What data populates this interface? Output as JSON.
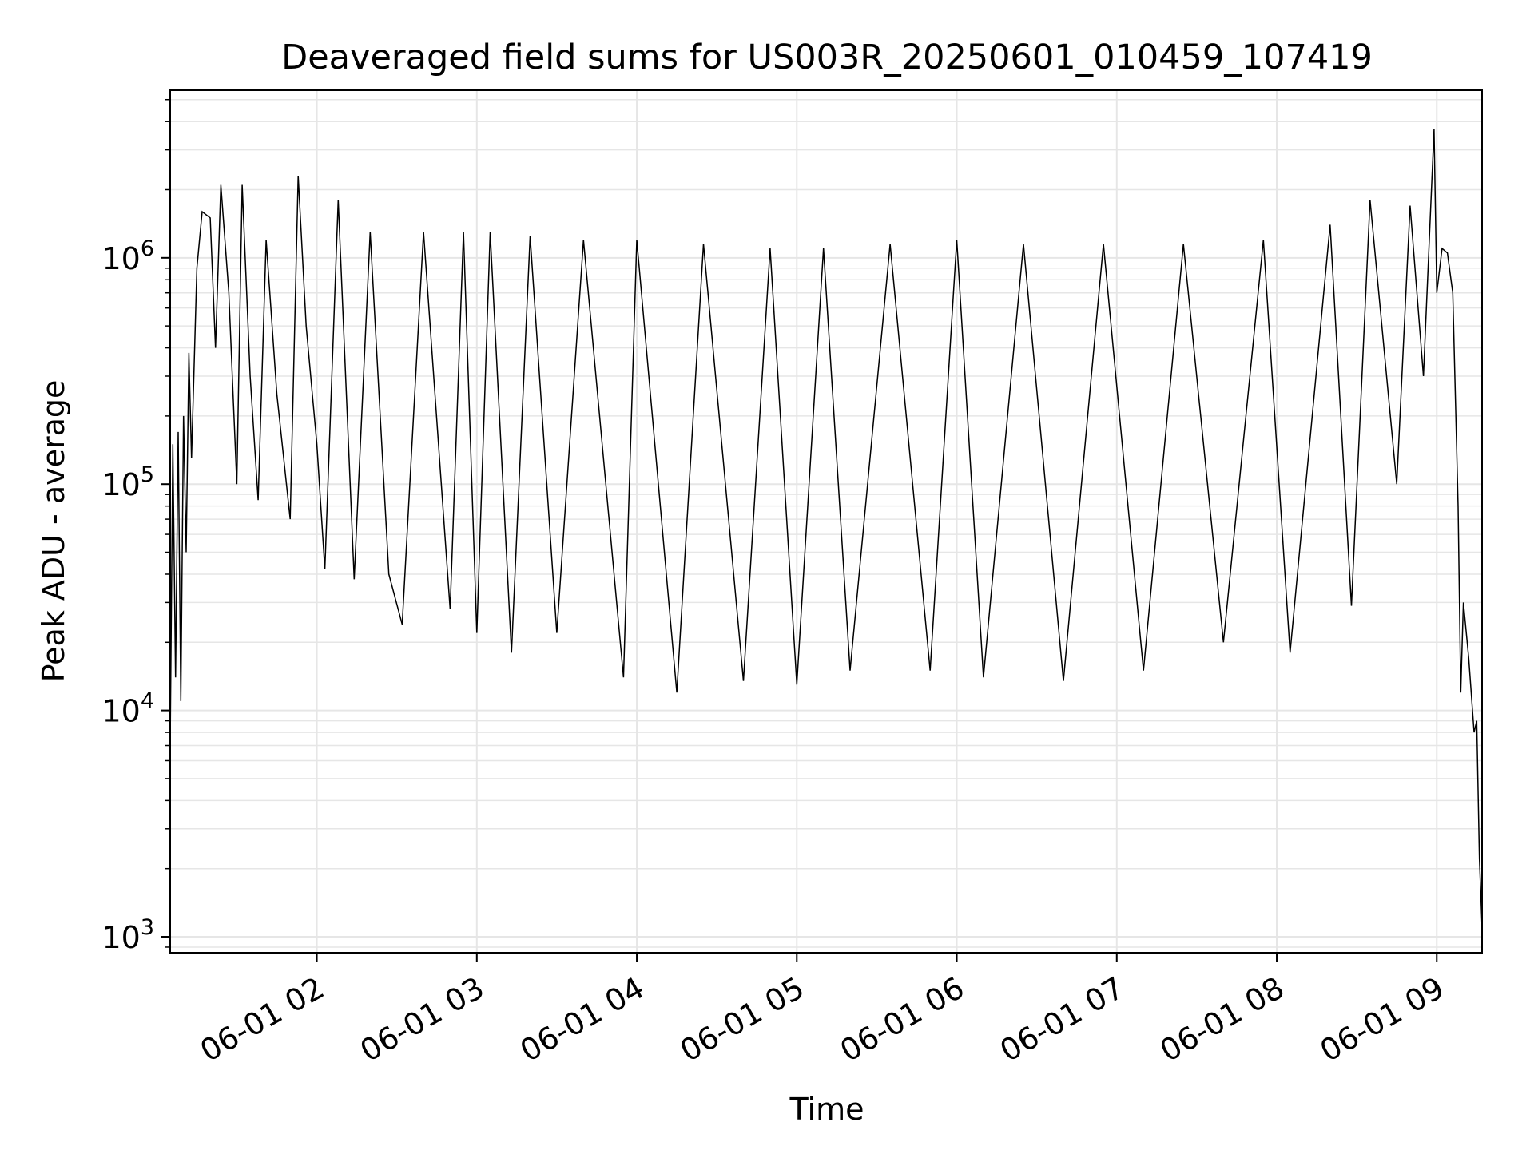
{
  "chart_data": {
    "type": "line",
    "title": "Deaveraged field sums for US003R_20250601_010459_107419",
    "xlabel": "Time",
    "ylabel": "Peak ADU - average",
    "yscale": "log",
    "ylim": [
      850,
      5500000
    ],
    "xlim": [
      "2025-06-01T01:05:00",
      "2025-06-01T09:17:00"
    ],
    "grid": true,
    "line_color": "#000000",
    "grid_color": "#e6e6e6",
    "x_ticks": [
      {
        "t": "2025-06-01T02:00:00",
        "label": "06-01 02"
      },
      {
        "t": "2025-06-01T03:00:00",
        "label": "06-01 03"
      },
      {
        "t": "2025-06-01T04:00:00",
        "label": "06-01 04"
      },
      {
        "t": "2025-06-01T05:00:00",
        "label": "06-01 05"
      },
      {
        "t": "2025-06-01T06:00:00",
        "label": "06-01 06"
      },
      {
        "t": "2025-06-01T07:00:00",
        "label": "06-01 07"
      },
      {
        "t": "2025-06-01T08:00:00",
        "label": "06-01 08"
      },
      {
        "t": "2025-06-01T09:00:00",
        "label": "06-01 09"
      }
    ],
    "y_ticks": [
      {
        "value": 1000,
        "base": "10",
        "exp": "3"
      },
      {
        "value": 10000,
        "base": "10",
        "exp": "4"
      },
      {
        "value": 100000,
        "base": "10",
        "exp": "5"
      },
      {
        "value": 1000000,
        "base": "10",
        "exp": "6"
      }
    ],
    "series": [
      {
        "points": [
          [
            "2025-06-01T01:05:00",
            7000
          ],
          [
            "2025-06-01T01:06:00",
            150000
          ],
          [
            "2025-06-01T01:07:00",
            14000
          ],
          [
            "2025-06-01T01:08:00",
            170000
          ],
          [
            "2025-06-01T01:09:00",
            11000
          ],
          [
            "2025-06-01T01:10:00",
            200000
          ],
          [
            "2025-06-01T01:11:00",
            50000
          ],
          [
            "2025-06-01T01:12:00",
            380000
          ],
          [
            "2025-06-01T01:13:00",
            130000
          ],
          [
            "2025-06-01T01:15:00",
            900000
          ],
          [
            "2025-06-01T01:17:00",
            1600000
          ],
          [
            "2025-06-01T01:20:00",
            1500000
          ],
          [
            "2025-06-01T01:22:00",
            400000
          ],
          [
            "2025-06-01T01:24:00",
            2100000
          ],
          [
            "2025-06-01T01:27:00",
            700000
          ],
          [
            "2025-06-01T01:30:00",
            100000
          ],
          [
            "2025-06-01T01:32:00",
            2100000
          ],
          [
            "2025-06-01T01:35:00",
            300000
          ],
          [
            "2025-06-01T01:38:00",
            85000
          ],
          [
            "2025-06-01T01:41:00",
            1200000
          ],
          [
            "2025-06-01T01:45:00",
            250000
          ],
          [
            "2025-06-01T01:50:00",
            70000
          ],
          [
            "2025-06-01T01:53:00",
            2300000
          ],
          [
            "2025-06-01T01:56:00",
            500000
          ],
          [
            "2025-06-01T02:00:00",
            150000
          ],
          [
            "2025-06-01T02:03:00",
            42000
          ],
          [
            "2025-06-01T02:08:00",
            1800000
          ],
          [
            "2025-06-01T02:14:00",
            38000
          ],
          [
            "2025-06-01T02:20:00",
            1300000
          ],
          [
            "2025-06-01T02:27:00",
            40000
          ],
          [
            "2025-06-01T02:32:00",
            24000
          ],
          [
            "2025-06-01T02:40:00",
            1300000
          ],
          [
            "2025-06-01T02:50:00",
            28000
          ],
          [
            "2025-06-01T02:55:00",
            1300000
          ],
          [
            "2025-06-01T03:00:00",
            22000
          ],
          [
            "2025-06-01T03:05:00",
            1300000
          ],
          [
            "2025-06-01T03:13:00",
            18000
          ],
          [
            "2025-06-01T03:20:00",
            1250000
          ],
          [
            "2025-06-01T03:30:00",
            22000
          ],
          [
            "2025-06-01T03:40:00",
            1200000
          ],
          [
            "2025-06-01T03:55:00",
            14000
          ],
          [
            "2025-06-01T04:00:00",
            1200000
          ],
          [
            "2025-06-01T04:15:00",
            12000
          ],
          [
            "2025-06-01T04:25:00",
            1150000
          ],
          [
            "2025-06-01T04:40:00",
            13500
          ],
          [
            "2025-06-01T04:50:00",
            1100000
          ],
          [
            "2025-06-01T05:00:00",
            13000
          ],
          [
            "2025-06-01T05:10:00",
            1100000
          ],
          [
            "2025-06-01T05:20:00",
            15000
          ],
          [
            "2025-06-01T05:35:00",
            1150000
          ],
          [
            "2025-06-01T05:50:00",
            15000
          ],
          [
            "2025-06-01T06:00:00",
            1200000
          ],
          [
            "2025-06-01T06:10:00",
            14000
          ],
          [
            "2025-06-01T06:25:00",
            1150000
          ],
          [
            "2025-06-01T06:40:00",
            13500
          ],
          [
            "2025-06-01T06:55:00",
            1150000
          ],
          [
            "2025-06-01T07:10:00",
            15000
          ],
          [
            "2025-06-01T07:25:00",
            1150000
          ],
          [
            "2025-06-01T07:40:00",
            20000
          ],
          [
            "2025-06-01T07:55:00",
            1200000
          ],
          [
            "2025-06-01T08:05:00",
            18000
          ],
          [
            "2025-06-01T08:20:00",
            1400000
          ],
          [
            "2025-06-01T08:28:00",
            29000
          ],
          [
            "2025-06-01T08:35:00",
            1800000
          ],
          [
            "2025-06-01T08:45:00",
            100000
          ],
          [
            "2025-06-01T08:50:00",
            1700000
          ],
          [
            "2025-06-01T08:55:00",
            300000
          ],
          [
            "2025-06-01T08:59:00",
            3700000
          ],
          [
            "2025-06-01T09:00:00",
            700000
          ],
          [
            "2025-06-01T09:02:00",
            1100000
          ],
          [
            "2025-06-01T09:04:00",
            1050000
          ],
          [
            "2025-06-01T09:06:00",
            700000
          ],
          [
            "2025-06-01T09:08:00",
            80000
          ],
          [
            "2025-06-01T09:09:00",
            12000
          ],
          [
            "2025-06-01T09:10:00",
            30000
          ],
          [
            "2025-06-01T09:12:00",
            17000
          ],
          [
            "2025-06-01T09:14:00",
            8000
          ],
          [
            "2025-06-01T09:15:00",
            9000
          ],
          [
            "2025-06-01T09:16:00",
            2200
          ],
          [
            "2025-06-01T09:17:00",
            1100
          ]
        ]
      }
    ]
  }
}
